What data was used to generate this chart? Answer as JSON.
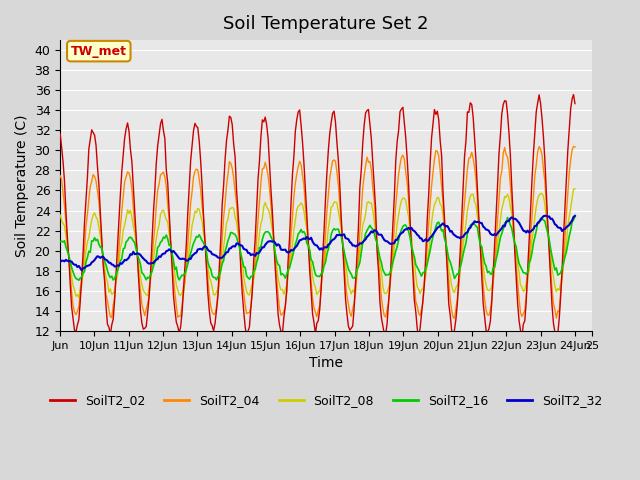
{
  "title": "Soil Temperature Set 2",
  "xlabel": "Time",
  "ylabel": "Soil Temperature (C)",
  "ylim": [
    12,
    41
  ],
  "yticks": [
    12,
    14,
    16,
    18,
    20,
    22,
    24,
    26,
    28,
    30,
    32,
    34,
    36,
    38,
    40
  ],
  "annotation": "TW_met",
  "annotation_color": "#cc0000",
  "annotation_bg": "#ffffcc",
  "annotation_border": "#cc8800",
  "series_colors": {
    "SoilT2_02": "#cc0000",
    "SoilT2_04": "#ff8800",
    "SoilT2_08": "#cccc00",
    "SoilT2_16": "#00cc00",
    "SoilT2_32": "#0000cc"
  },
  "legend_labels": [
    "SoilT2_02",
    "SoilT2_04",
    "SoilT2_08",
    "SoilT2_16",
    "SoilT2_32"
  ],
  "x_tick_positions": [
    9,
    10,
    11,
    12,
    13,
    14,
    15,
    16,
    17,
    18,
    19,
    20,
    21,
    22,
    23,
    24,
    24.5
  ],
  "x_tick_labels": [
    "Jun",
    "10Jun",
    "11Jun",
    "12Jun",
    "13Jun",
    "14Jun",
    "15Jun",
    "16Jun",
    "17Jun",
    "18Jun",
    "19Jun",
    "20Jun",
    "21Jun",
    "22Jun",
    "23Jun",
    "24Jun",
    "25"
  ],
  "n_points": 360,
  "days": 15,
  "start_day": 9.0
}
